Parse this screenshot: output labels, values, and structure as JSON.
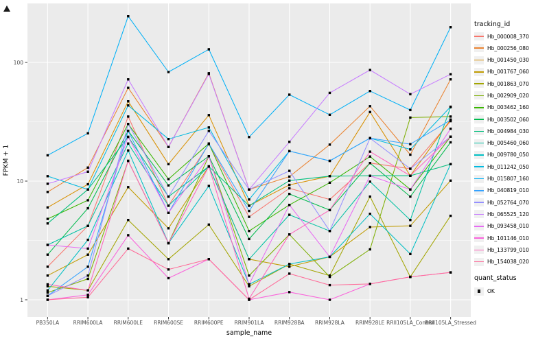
{
  "chart_data": {
    "type": "line",
    "xlabel": "sample_name",
    "ylabel": "FPKM + 1",
    "y_scale": "log10",
    "y_ticks": [
      1,
      10,
      100
    ],
    "y_minor_ticks": [
      3.162,
      31.62
    ],
    "ylim": [
      1,
      316
    ],
    "panel_bg": "#EBEBEB",
    "grid_color": "#FFFFFF",
    "point_shape": "filled-square",
    "point_color": "#000000",
    "categories": [
      "PB350LA",
      "RRIM600LA",
      "RRIM600LE",
      "RRIM600SE",
      "RRIM600PE",
      "RRIM901LA",
      "RRIM928BA",
      "RRIM928LA",
      "RRIM928LE",
      "RRII105LA_Control",
      "RRII105LA_Stressed"
    ],
    "legend": {
      "series_title": "tracking_id",
      "status_title": "quant_status",
      "status_items": [
        {
          "label": "OK",
          "marker": "black-square"
        }
      ]
    },
    "series": [
      {
        "name": "Hb_000008_370",
        "color": "#F8766D",
        "values": [
          1.9,
          4.2,
          35,
          6.2,
          20.5,
          5.0,
          8.7,
          7.0,
          14.2,
          12.7,
          32
        ]
      },
      {
        "name": "Hb_000256_080",
        "color": "#EA8331",
        "values": [
          8.1,
          13.0,
          61,
          19.4,
          81,
          8.5,
          10.9,
          20.3,
          42.8,
          16.7,
          72
        ]
      },
      {
        "name": "Hb_001450_030",
        "color": "#D89000",
        "values": [
          6.0,
          9.4,
          47,
          13.9,
          36,
          6.2,
          9.3,
          11.0,
          38.2,
          11.1,
          33
        ]
      },
      {
        "name": "Hb_001767_060",
        "color": "#C09B00",
        "values": [
          1.6,
          2.4,
          8.9,
          4.0,
          13.3,
          2.2,
          1.9,
          2.3,
          4.1,
          4.2,
          10.1
        ]
      },
      {
        "name": "Hb_001863_070",
        "color": "#A3A500",
        "values": [
          1.3,
          1.2,
          4.7,
          2.2,
          4.3,
          1.3,
          2.0,
          1.6,
          7.4,
          1.56,
          5.1
        ]
      },
      {
        "name": "Hb_002909_020",
        "color": "#7CAE00",
        "values": [
          1.15,
          1.5,
          14.8,
          3.0,
          16.2,
          1.6,
          3.55,
          1.56,
          2.66,
          34.3,
          35
        ]
      },
      {
        "name": "Hb_003462_160",
        "color": "#39B600",
        "values": [
          4.8,
          6.9,
          30.3,
          10.4,
          20.7,
          3.8,
          6.3,
          9.7,
          16.1,
          8.5,
          23.7
        ]
      },
      {
        "name": "Hb_003502_060",
        "color": "#00BB4E",
        "values": [
          2.4,
          5.9,
          26.5,
          9.2,
          16.2,
          3.25,
          7.8,
          5.7,
          14.2,
          7.4,
          21.2
        ]
      },
      {
        "name": "Hb_004984_030",
        "color": "#00BF7D",
        "values": [
          4.4,
          8.5,
          23.6,
          7.4,
          13.3,
          6.2,
          10.1,
          11.0,
          11.1,
          11.1,
          13.9
        ]
      },
      {
        "name": "Hb_005460_060",
        "color": "#00C1A3",
        "values": [
          2.9,
          4.2,
          20.7,
          6.2,
          13.3,
          2.2,
          5.2,
          3.8,
          9.9,
          4.7,
          42
        ]
      },
      {
        "name": "Hb_009780_050",
        "color": "#00BFC4",
        "values": [
          1.2,
          3.2,
          18.1,
          3.0,
          9.1,
          1.35,
          2.0,
          2.3,
          5.3,
          2.43,
          13.9
        ]
      },
      {
        "name": "Hb_011242_050",
        "color": "#00BAE0",
        "values": [
          11.0,
          8.5,
          43.4,
          22.6,
          28.3,
          7.0,
          17.9,
          14.8,
          23.0,
          18.5,
          42.3
        ]
      },
      {
        "name": "Hb_015807_160",
        "color": "#00B0F6",
        "values": [
          16.5,
          25.3,
          245,
          83,
          129,
          23.5,
          53.5,
          36.2,
          57.4,
          39.7,
          198
        ]
      },
      {
        "name": "Hb_040819_010",
        "color": "#35A2FF",
        "values": [
          1.08,
          1.9,
          26.5,
          5.4,
          20.7,
          5.6,
          17.9,
          14.8,
          23.0,
          20.5,
          32.7
        ]
      },
      {
        "name": "Hb_052764_070",
        "color": "#9590FF",
        "values": [
          1.08,
          1.6,
          30.3,
          7.4,
          26.5,
          8.5,
          12.2,
          3.8,
          23.0,
          12.7,
          23.7
        ]
      },
      {
        "name": "Hb_065525_120",
        "color": "#C77CFF",
        "values": [
          9.5,
          12.0,
          72,
          19.4,
          80,
          8.5,
          21.4,
          55.4,
          86.4,
          54,
          79.5
        ]
      },
      {
        "name": "Hb_093458_010",
        "color": "#E76BF3",
        "values": [
          2.9,
          2.7,
          23.6,
          5.4,
          16.2,
          1.35,
          6.3,
          2.3,
          11.1,
          8.5,
          27.6
        ]
      },
      {
        "name": "Hb_101146_010",
        "color": "#FA62DB",
        "values": [
          1.0,
          1.1,
          3.5,
          1.52,
          2.2,
          1.0,
          1.16,
          1.0,
          1.36,
          1.56,
          1.7
        ]
      },
      {
        "name": "Hb_133799_010",
        "color": "#FF62BC",
        "values": [
          1.35,
          1.2,
          14.8,
          3.0,
          13.3,
          1.02,
          3.55,
          5.7,
          17.7,
          11.1,
          23.7
        ]
      },
      {
        "name": "Hb_154038_020",
        "color": "#FF6A98",
        "values": [
          1.0,
          1.05,
          2.7,
          1.8,
          2.2,
          1.0,
          1.66,
          1.33,
          1.36,
          1.56,
          1.7
        ]
      }
    ]
  }
}
